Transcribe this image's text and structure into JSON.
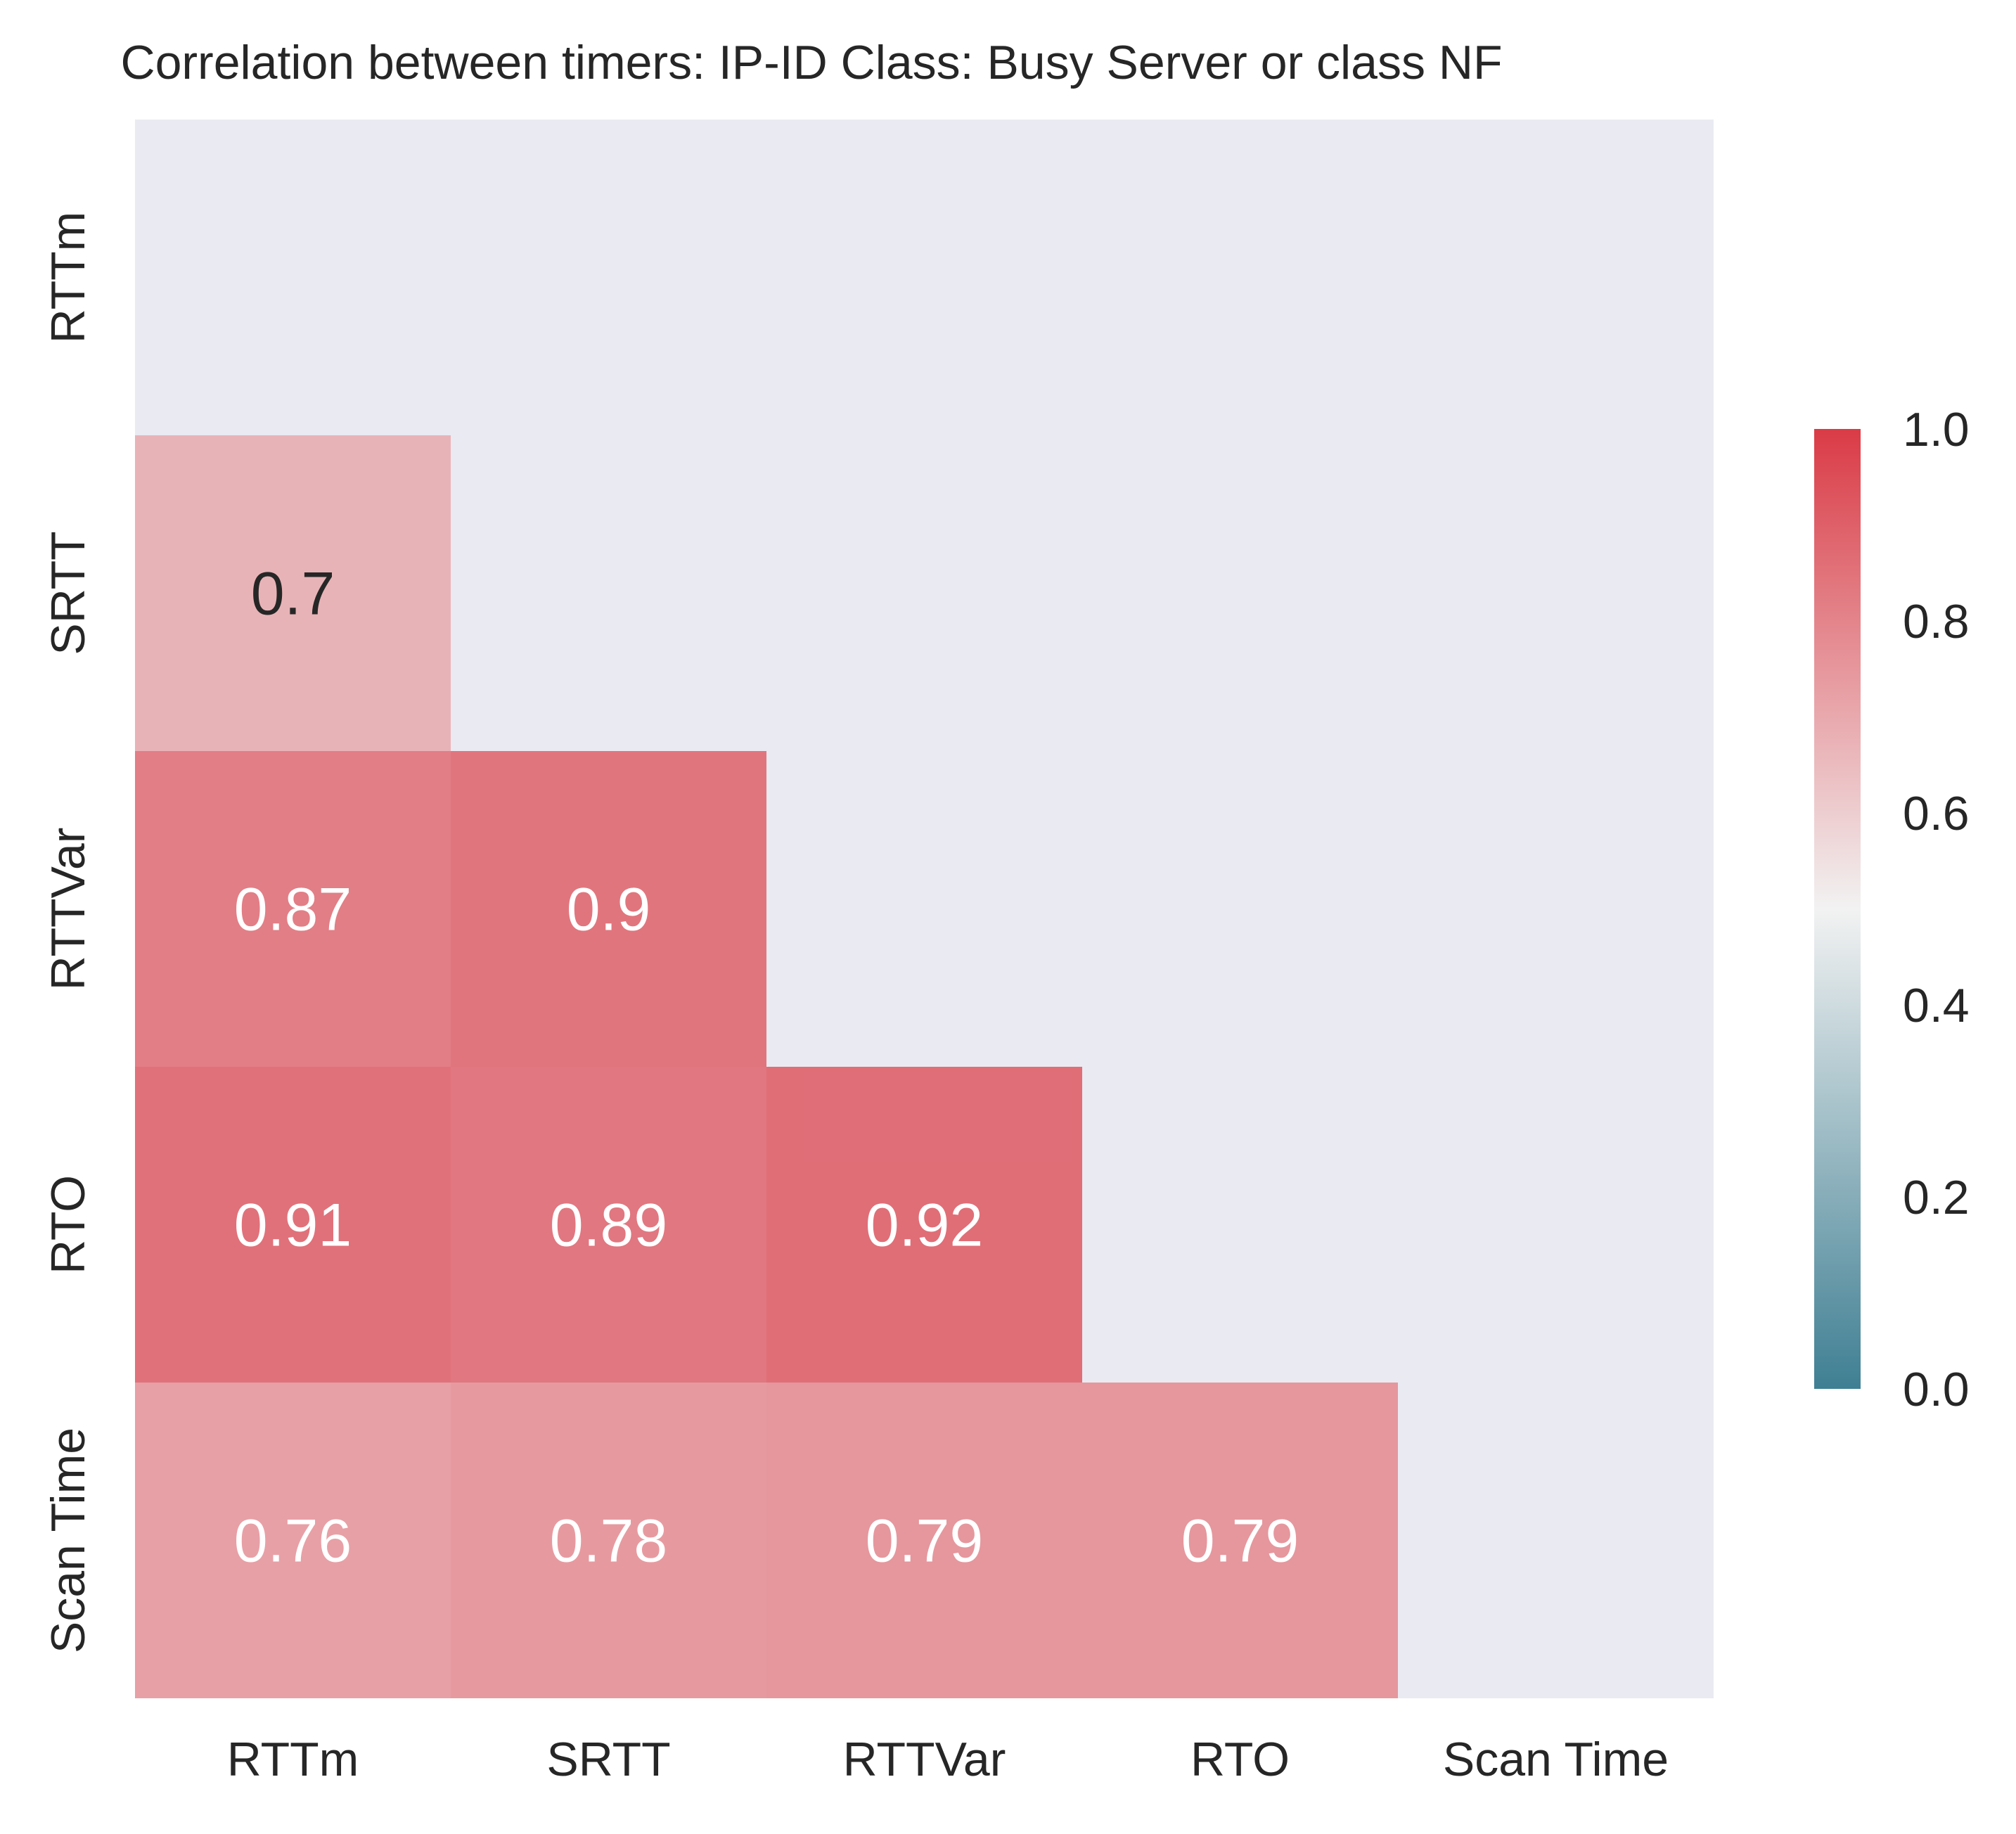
{
  "chart_data": {
    "type": "heatmap",
    "title": "Correlation between timers: IP-ID Class: Busy Server or class NF",
    "xlabel": "",
    "ylabel": "",
    "x_categories": [
      "RTTm",
      "SRTT",
      "RTTVar",
      "RTO",
      "Scan Time"
    ],
    "y_categories": [
      "RTTm",
      "SRTT",
      "RTTVar",
      "RTO",
      "Scan Time"
    ],
    "mask": "upper-triangle-including-diagonal",
    "cells": [
      {
        "row": "SRTT",
        "col": "RTTm",
        "value": 0.7,
        "label": "0.7"
      },
      {
        "row": "RTTVar",
        "col": "RTTm",
        "value": 0.87,
        "label": "0.87"
      },
      {
        "row": "RTTVar",
        "col": "SRTT",
        "value": 0.9,
        "label": "0.9"
      },
      {
        "row": "RTO",
        "col": "RTTm",
        "value": 0.91,
        "label": "0.91"
      },
      {
        "row": "RTO",
        "col": "SRTT",
        "value": 0.89,
        "label": "0.89"
      },
      {
        "row": "RTO",
        "col": "RTTVar",
        "value": 0.92,
        "label": "0.92"
      },
      {
        "row": "Scan Time",
        "col": "RTTm",
        "value": 0.76,
        "label": "0.76"
      },
      {
        "row": "Scan Time",
        "col": "SRTT",
        "value": 0.78,
        "label": "0.78"
      },
      {
        "row": "Scan Time",
        "col": "RTTVar",
        "value": 0.79,
        "label": "0.79"
      },
      {
        "row": "Scan Time",
        "col": "RTO",
        "value": 0.79,
        "label": "0.79"
      }
    ],
    "colorbar": {
      "vmin": 0.0,
      "vmax": 1.0,
      "ticks": [
        "0.0",
        "0.2",
        "0.4",
        "0.6",
        "0.8",
        "1.0"
      ],
      "colormap": "diverging teal-white-red",
      "colors": {
        "low": "#3f7f93",
        "mid": "#f2f2f2",
        "high": "#da3b46"
      },
      "placement": "right"
    },
    "grid": false,
    "background_color": "#eaeaf2"
  }
}
